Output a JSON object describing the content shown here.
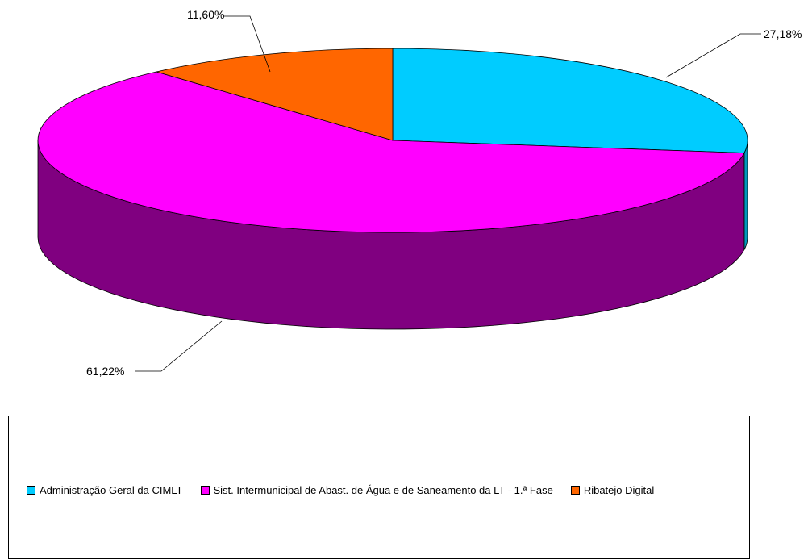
{
  "chart_data": {
    "type": "pie",
    "style": "3d",
    "slices": [
      {
        "label": "Administração Geral da CIMLT",
        "value": 27.18,
        "value_label": "27,18%",
        "color": "#00CCFF",
        "side_color": "#0099BB"
      },
      {
        "label": "Sist. Intermunicipal de Abast. de Água e de Saneamento da LT - 1.ª Fase",
        "value": 61.22,
        "value_label": "61,22%",
        "color": "#FF00FF",
        "side_color": "#800080"
      },
      {
        "label": "Ribatejo Digital",
        "value": 11.6,
        "value_label": "11,60%",
        "color": "#FF6600",
        "side_color": "#B34700"
      }
    ],
    "legend_position": "bottom"
  }
}
